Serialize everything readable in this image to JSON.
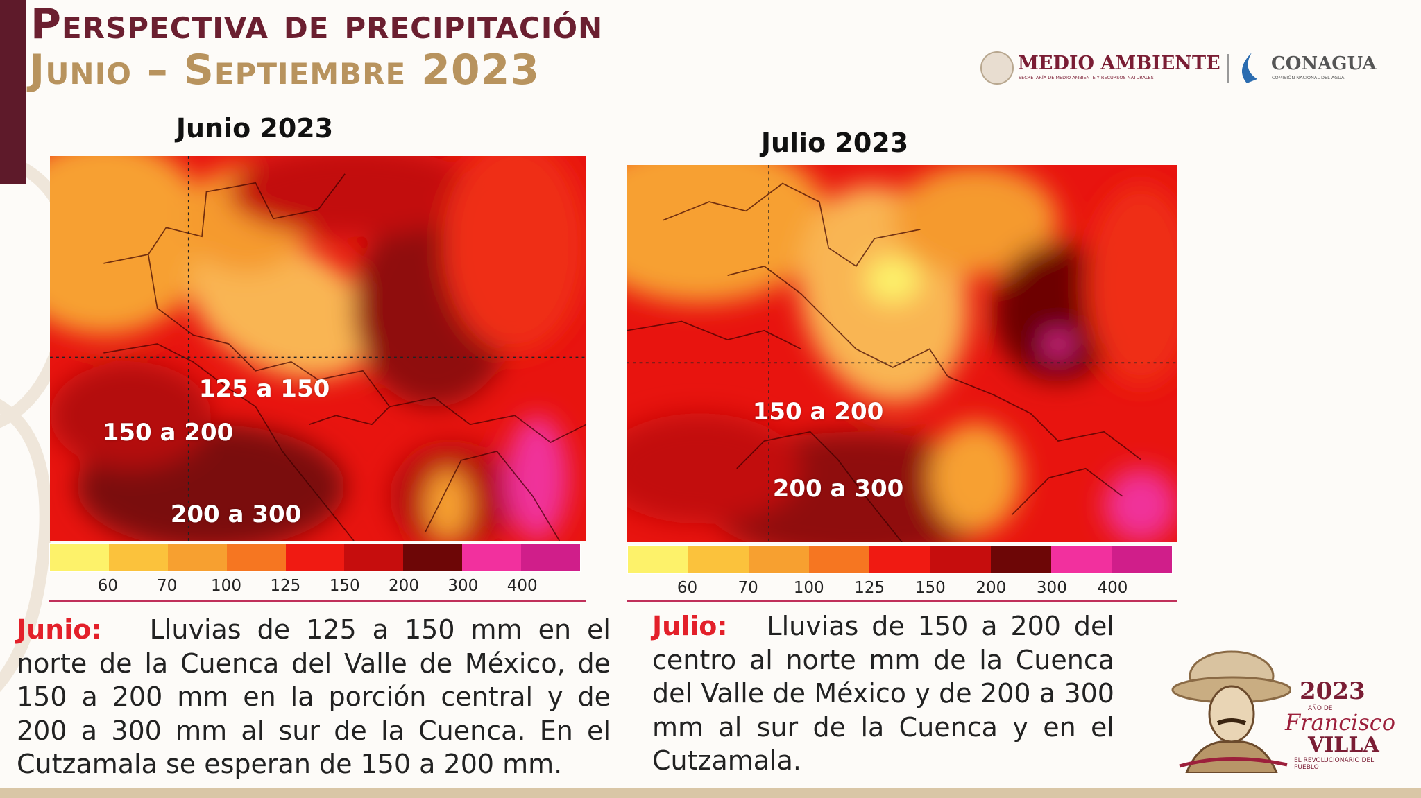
{
  "header": {
    "title": "Perspectiva de precipitación",
    "subtitle": "Junio – Septiembre 2023"
  },
  "logos": {
    "semarnat": "MEDIO AMBIENTE",
    "semarnat_sub": "SECRETARÍA DE MEDIO AMBIENTE Y RECURSOS NATURALES",
    "conagua": "CONAGUA",
    "conagua_sub": "COMISIÓN NACIONAL DEL AGUA"
  },
  "panels": [
    {
      "title": "Junio 2023",
      "regions": [
        "125 a 150",
        "150 a 200",
        "200 a 300"
      ],
      "legend": [
        "60",
        "70",
        "100",
        "125",
        "150",
        "200",
        "300",
        "400"
      ],
      "description": {
        "label": "Junio:",
        "text": "Lluvias de 125 a 150 mm en el norte de la Cuenca del Valle de México, de 150 a 200 mm en la porción central y de 200 a 300 mm al sur de la Cuenca. En el Cutzamala se esperan de 150 a 200 mm."
      }
    },
    {
      "title": "Julio 2023",
      "regions": [
        "150 a 200",
        "200 a 300"
      ],
      "legend": [
        "60",
        "70",
        "100",
        "125",
        "150",
        "200",
        "300",
        "400"
      ],
      "description": {
        "label": "Julio:",
        "text": "Lluvias de 150 a 200 del centro al norte mm de la Cuenca del Valle de México y de 200 a 300 mm al sur de la Cuenca y en el Cutzamala."
      }
    }
  ],
  "badge": {
    "year": "2023",
    "prefix": "AÑO DE",
    "name": "Francisco",
    "surname": "VILLA",
    "motto": "EL REVOLUCIONARIO DEL PUEBLO"
  }
}
